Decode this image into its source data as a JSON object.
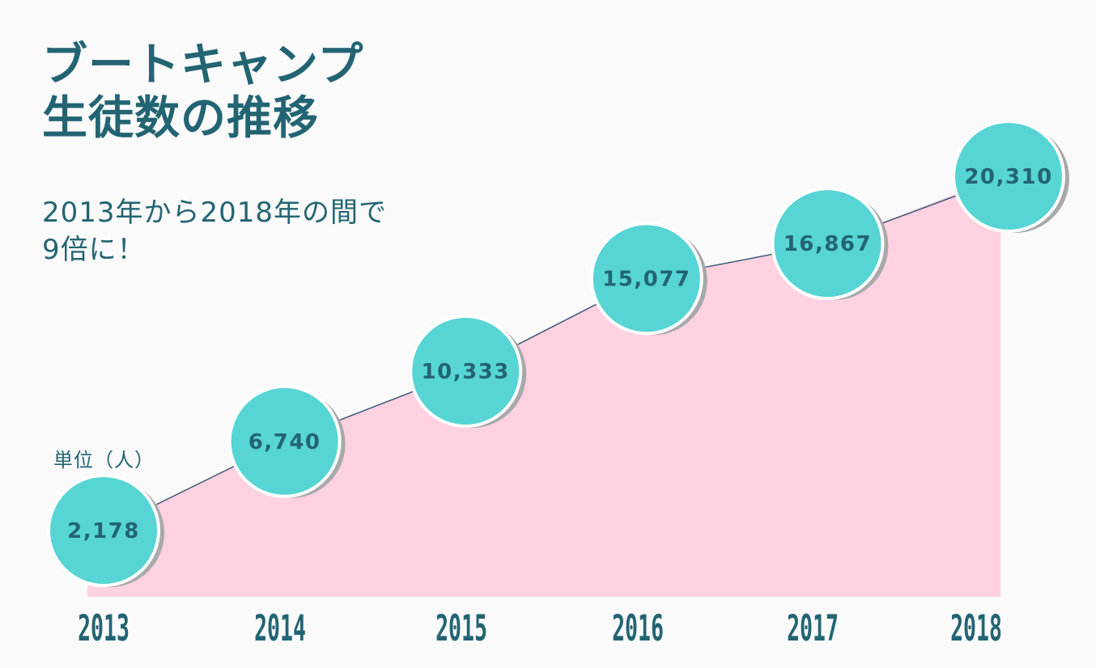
{
  "title_lines": [
    "ブートキャンプ",
    "生徒数の推移"
  ],
  "subtitle_lines": [
    "2013年から2018年の間で",
    "9倍に！"
  ],
  "unit_label": "単位（人）",
  "colors": {
    "text": "#236473",
    "bubble": "#57d5d5",
    "area": "#ffd1e1",
    "line": "#3a5a78",
    "shadow": "#a7a9ab"
  },
  "chart_data": {
    "type": "area",
    "categories": [
      "2013",
      "2014",
      "2015",
      "2016",
      "2017",
      "2018"
    ],
    "values": [
      2178,
      6740,
      10333,
      15077,
      16867,
      20310
    ],
    "value_labels": [
      "2,178",
      "6,740",
      "10,333",
      "15,077",
      "16,867",
      "20,310"
    ],
    "title": "ブートキャンプ 生徒数の推移",
    "ylabel": "単位（人）",
    "grid": false,
    "legend": false
  }
}
